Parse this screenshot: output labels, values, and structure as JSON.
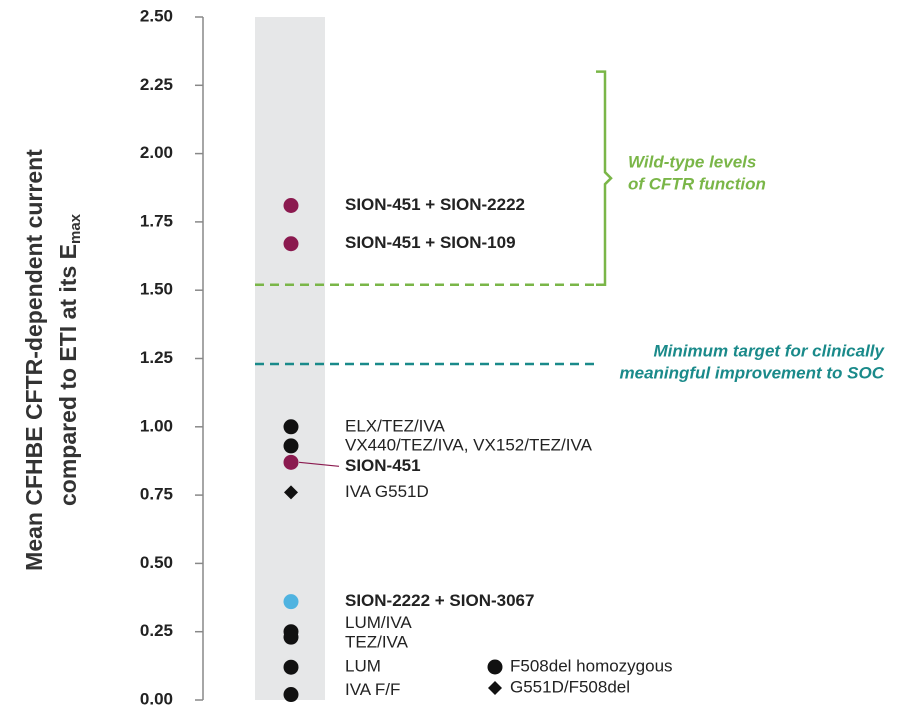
{
  "chart_data": {
    "type": "scatter",
    "ylabel_lines": [
      "Mean CFHBE CFTR-dependent current",
      "compared to ETI at its E"
    ],
    "ylabel_subscript": "max",
    "ylim": [
      0,
      2.5
    ],
    "yticks": [
      {
        "value": 0,
        "label": "0.00"
      },
      {
        "value": 0.25,
        "label": "0.25"
      },
      {
        "value": 0.5,
        "label": "0.50"
      },
      {
        "value": 0.75,
        "label": "0.75"
      },
      {
        "value": 1,
        "label": "1.00"
      },
      {
        "value": 1.25,
        "label": "1.25"
      },
      {
        "value": 1.5,
        "label": "1.50"
      },
      {
        "value": 1.75,
        "label": "1.75"
      },
      {
        "value": 2,
        "label": "2.00"
      },
      {
        "value": 2.25,
        "label": "2.25"
      },
      {
        "value": 2.5,
        "label": "2.50"
      }
    ],
    "points": [
      {
        "label": "SION-451 + SION-2222",
        "value": 1.81,
        "color": "#8b1a4f",
        "marker": "circle",
        "bold": true
      },
      {
        "label": "SION-451 + SION-109",
        "value": 1.67,
        "color": "#8b1a4f",
        "marker": "circle",
        "bold": true
      },
      {
        "label": "ELX/TEZ/IVA",
        "value": 1.0,
        "color": "#111111",
        "marker": "circle",
        "bold": false
      },
      {
        "label": "VX440/TEZ/IVA, VX152/TEZ/IVA",
        "value": 0.93,
        "color": "#111111",
        "marker": "circle",
        "bold": false
      },
      {
        "label": "SION-451",
        "value": 0.87,
        "color": "#8b1a4f",
        "marker": "circle",
        "bold": true
      },
      {
        "label": "IVA G551D",
        "value": 0.76,
        "color": "#111111",
        "marker": "diamond",
        "bold": false
      },
      {
        "label": "SION-2222 + SION-3067",
        "value": 0.36,
        "color": "#4fb3e0",
        "marker": "circle",
        "bold": true
      },
      {
        "label": "LUM/IVA",
        "value": 0.25,
        "color": "#111111",
        "marker": "circle",
        "bold": false
      },
      {
        "label": "TEZ/IVA",
        "value": 0.23,
        "color": "#111111",
        "marker": "circle",
        "bold": false
      },
      {
        "label": "LUM",
        "value": 0.12,
        "color": "#111111",
        "marker": "circle",
        "bold": false
      },
      {
        "label": "IVA F/F",
        "value": 0.02,
        "color": "#111111",
        "marker": "circle",
        "bold": false
      }
    ],
    "reference_lines": [
      {
        "value": 1.52,
        "bracket_top": 2.3,
        "color": "#7ab648",
        "label": [
          "Wild-type levels",
          "of CFTR function"
        ]
      },
      {
        "value": 1.23,
        "color": "#1a8a8a",
        "label": [
          "Minimum target for clinically",
          "meaningful improvement to SOC"
        ]
      }
    ],
    "legend": [
      {
        "name": "F508del homozygous",
        "marker": "circle"
      },
      {
        "name": "G551D/F508del",
        "marker": "diamond"
      }
    ]
  }
}
